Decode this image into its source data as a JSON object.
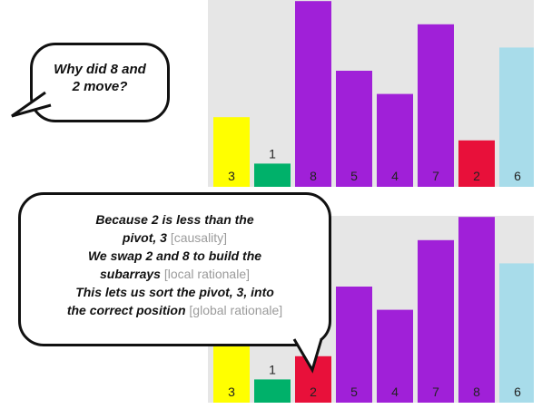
{
  "colors": {
    "panel_bg": "#e6e6e6",
    "yellow": "#ffff00",
    "green": "#00b16a",
    "purple": "#a020d8",
    "red": "#e8103a",
    "light_blue": "#a8dcea"
  },
  "array_before": {
    "bars": [
      {
        "value": 3,
        "label": "3",
        "color": "yellow"
      },
      {
        "value": 1,
        "label": "1",
        "color": "green"
      },
      {
        "value": 8,
        "label": "8",
        "color": "purple"
      },
      {
        "value": 5,
        "label": "5",
        "color": "purple"
      },
      {
        "value": 4,
        "label": "4",
        "color": "purple"
      },
      {
        "value": 7,
        "label": "7",
        "color": "purple"
      },
      {
        "value": 2,
        "label": "2",
        "color": "red"
      },
      {
        "value": 6,
        "label": "6",
        "color": "light_blue"
      }
    ]
  },
  "array_after": {
    "bars": [
      {
        "value": 3,
        "label": "3",
        "color": "yellow"
      },
      {
        "value": 1,
        "label": "1",
        "color": "green"
      },
      {
        "value": 2,
        "label": "2",
        "color": "red"
      },
      {
        "value": 5,
        "label": "5",
        "color": "purple"
      },
      {
        "value": 4,
        "label": "4",
        "color": "purple"
      },
      {
        "value": 7,
        "label": "7",
        "color": "purple"
      },
      {
        "value": 8,
        "label": "8",
        "color": "purple"
      },
      {
        "value": 6,
        "label": "6",
        "color": "light_blue"
      }
    ]
  },
  "question": {
    "line1": "Why did 8 and",
    "line2": "2 move?"
  },
  "answer": {
    "line1": "Because 2 is less than the",
    "line2a": "pivot, 3",
    "tag_causality": "[causality]",
    "line3": "We swap 2 and 8 to build the",
    "line4a": "subarrays",
    "tag_local": "[local rationale]",
    "line5": "This lets us sort the pivot, 3, into",
    "line6a": "the correct position",
    "tag_global": "[global rationale]"
  }
}
